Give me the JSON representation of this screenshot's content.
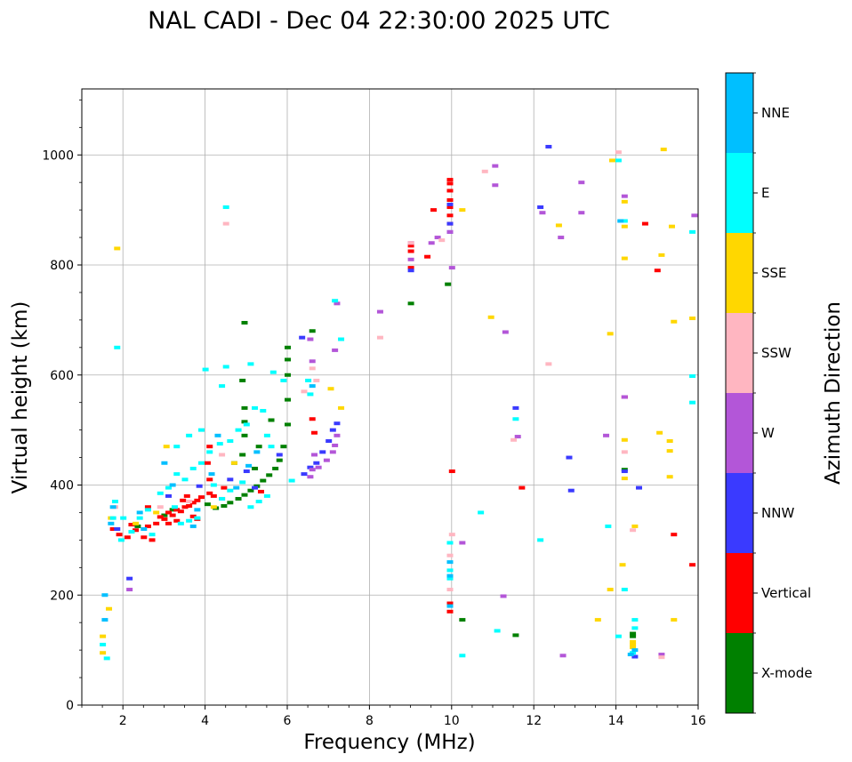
{
  "chart_data": {
    "type": "scatter",
    "title": "NAL CADI - Dec 04 22:30:00 2025 UTC",
    "xlabel": "Frequency (MHz)",
    "ylabel": "Virtual height (km)",
    "xlim": [
      1,
      16
    ],
    "ylim": [
      0,
      1120
    ],
    "xticks": [
      2,
      4,
      6,
      8,
      10,
      12,
      14,
      16
    ],
    "yticks": [
      0,
      200,
      400,
      600,
      800,
      1000
    ],
    "grid": true,
    "colorbar": {
      "label": "Azimuth Direction",
      "categories": [
        "X-mode",
        "Vertical",
        "NNW",
        "W",
        "SSW",
        "SSE",
        "E",
        "NNE"
      ],
      "colors": [
        "#008000",
        "#ff0000",
        "#3a3aff",
        "#b356d8",
        "#ffb6c1",
        "#ffd700",
        "#00ffff",
        "#00bfff"
      ]
    },
    "series": [
      {
        "name": "X-mode",
        "points": [
          [
            4.05,
            365
          ],
          [
            4.25,
            358
          ],
          [
            4.45,
            362
          ],
          [
            4.6,
            368
          ],
          [
            4.8,
            375
          ],
          [
            4.95,
            382
          ],
          [
            5.1,
            390
          ],
          [
            5.25,
            398
          ],
          [
            5.4,
            408
          ],
          [
            5.55,
            418
          ],
          [
            5.7,
            430
          ],
          [
            5.8,
            445
          ],
          [
            5.9,
            470
          ],
          [
            6.0,
            510
          ],
          [
            4.9,
            455
          ],
          [
            5.2,
            430
          ],
          [
            4.7,
            440
          ],
          [
            6.0,
            555
          ],
          [
            6.0,
            600
          ],
          [
            6.0,
            628
          ],
          [
            6.0,
            650
          ],
          [
            4.95,
            490
          ],
          [
            5.3,
            470
          ],
          [
            4.9,
            590
          ],
          [
            4.95,
            540
          ],
          [
            4.95,
            515
          ],
          [
            4.95,
            695
          ],
          [
            3.0,
            345
          ],
          [
            3.2,
            355
          ],
          [
            9.9,
            765
          ],
          [
            9.0,
            730
          ],
          [
            10.25,
            155
          ],
          [
            11.55,
            127
          ],
          [
            14.4,
            125
          ],
          [
            14.4,
            130
          ],
          [
            14.2,
            428
          ],
          [
            5.6,
            518
          ],
          [
            6.6,
            680
          ],
          [
            2.35,
            325
          ]
        ]
      },
      {
        "name": "Vertical",
        "points": [
          [
            1.75,
            320
          ],
          [
            1.9,
            310
          ],
          [
            2.1,
            305
          ],
          [
            2.3,
            318
          ],
          [
            2.5,
            305
          ],
          [
            2.6,
            325
          ],
          [
            2.8,
            330
          ],
          [
            2.9,
            342
          ],
          [
            3.0,
            338
          ],
          [
            3.1,
            350
          ],
          [
            3.2,
            345
          ],
          [
            3.3,
            355
          ],
          [
            3.4,
            352
          ],
          [
            3.5,
            360
          ],
          [
            3.6,
            362
          ],
          [
            3.7,
            368
          ],
          [
            3.8,
            372
          ],
          [
            3.9,
            378
          ],
          [
            4.1,
            385
          ],
          [
            4.2,
            380
          ],
          [
            4.4,
            375
          ],
          [
            3.3,
            335
          ],
          [
            3.1,
            330
          ],
          [
            2.6,
            360
          ],
          [
            3.55,
            380
          ],
          [
            4.1,
            410
          ],
          [
            4.05,
            440
          ],
          [
            4.1,
            470
          ],
          [
            9.0,
            835
          ],
          [
            9.0,
            825
          ],
          [
            9.0,
            795
          ],
          [
            9.4,
            815
          ],
          [
            9.55,
            900
          ],
          [
            9.95,
            955
          ],
          [
            9.95,
            948
          ],
          [
            9.95,
            935
          ],
          [
            9.95,
            918
          ],
          [
            9.95,
            905
          ],
          [
            9.95,
            890
          ],
          [
            9.95,
            875
          ],
          [
            10.0,
            425
          ],
          [
            9.95,
            185
          ],
          [
            9.95,
            170
          ],
          [
            11.7,
            395
          ],
          [
            14.2,
            560
          ],
          [
            14.7,
            875
          ],
          [
            15.0,
            790
          ],
          [
            15.4,
            310
          ],
          [
            15.85,
            255
          ],
          [
            6.65,
            495
          ],
          [
            6.6,
            520
          ],
          [
            2.2,
            328
          ],
          [
            2.7,
            300
          ],
          [
            3.7,
            343
          ],
          [
            3.8,
            338
          ],
          [
            3.45,
            372
          ],
          [
            4.45,
            395
          ],
          [
            5.35,
            388
          ]
        ]
      },
      {
        "name": "NNW",
        "points": [
          [
            1.85,
            320
          ],
          [
            2.15,
            230
          ],
          [
            6.4,
            420
          ],
          [
            6.55,
            432
          ],
          [
            6.7,
            440
          ],
          [
            6.85,
            460
          ],
          [
            7.0,
            480
          ],
          [
            7.1,
            500
          ],
          [
            7.2,
            512
          ],
          [
            9.0,
            790
          ],
          [
            6.35,
            668
          ],
          [
            9.95,
            860
          ],
          [
            9.95,
            875
          ],
          [
            9.95,
            910
          ],
          [
            12.15,
            905
          ],
          [
            12.35,
            1015
          ],
          [
            12.85,
            450
          ],
          [
            12.9,
            390
          ],
          [
            14.2,
            425
          ],
          [
            14.55,
            395
          ],
          [
            14.45,
            88
          ],
          [
            11.55,
            540
          ],
          [
            5.2,
            395
          ],
          [
            5.0,
            425
          ],
          [
            3.1,
            380
          ],
          [
            3.85,
            398
          ],
          [
            4.6,
            410
          ],
          [
            5.8,
            455
          ]
        ]
      },
      {
        "name": "W",
        "points": [
          [
            2.15,
            210
          ],
          [
            6.55,
            415
          ],
          [
            6.75,
            432
          ],
          [
            6.95,
            445
          ],
          [
            7.1,
            460
          ],
          [
            7.15,
            472
          ],
          [
            7.2,
            490
          ],
          [
            6.65,
            455
          ],
          [
            6.6,
            428
          ],
          [
            9.95,
            860
          ],
          [
            10.0,
            795
          ],
          [
            9.5,
            840
          ],
          [
            9.65,
            850
          ],
          [
            8.25,
            715
          ],
          [
            11.05,
            980
          ],
          [
            11.05,
            945
          ],
          [
            11.3,
            678
          ],
          [
            13.15,
            950
          ],
          [
            13.15,
            895
          ],
          [
            12.65,
            850
          ],
          [
            12.7,
            90
          ],
          [
            12.2,
            895
          ],
          [
            14.2,
            925
          ],
          [
            14.2,
            560
          ],
          [
            13.75,
            490
          ],
          [
            15.1,
            92
          ],
          [
            15.9,
            890
          ],
          [
            11.25,
            198
          ],
          [
            11.6,
            488
          ],
          [
            10.25,
            295
          ],
          [
            9.0,
            840
          ],
          [
            6.55,
            665
          ],
          [
            6.6,
            625
          ],
          [
            7.15,
            645
          ],
          [
            7.2,
            730
          ],
          [
            9.0,
            810
          ]
        ]
      },
      {
        "name": "SSW",
        "points": [
          [
            4.5,
            875
          ],
          [
            8.25,
            668
          ],
          [
            9.0,
            840
          ],
          [
            9.75,
            845
          ],
          [
            10.8,
            970
          ],
          [
            11.5,
            482
          ],
          [
            12.35,
            620
          ],
          [
            14.05,
            1005
          ],
          [
            14.2,
            460
          ],
          [
            14.4,
            318
          ],
          [
            15.1,
            87
          ],
          [
            9.95,
            272
          ],
          [
            9.95,
            210
          ],
          [
            6.4,
            570
          ],
          [
            6.6,
            612
          ],
          [
            6.7,
            590
          ],
          [
            10.0,
            310
          ],
          [
            2.9,
            360
          ],
          [
            3.6,
            370
          ],
          [
            4.4,
            455
          ],
          [
            1.8,
            360
          ]
        ]
      },
      {
        "name": "SSE",
        "points": [
          [
            1.5,
            125
          ],
          [
            1.5,
            95
          ],
          [
            1.65,
            175
          ],
          [
            1.85,
            830
          ],
          [
            4.7,
            440
          ],
          [
            7.05,
            575
          ],
          [
            10.25,
            900
          ],
          [
            10.95,
            705
          ],
          [
            12.6,
            872
          ],
          [
            13.55,
            155
          ],
          [
            13.85,
            210
          ],
          [
            13.85,
            675
          ],
          [
            13.9,
            990
          ],
          [
            14.2,
            915
          ],
          [
            14.2,
            870
          ],
          [
            14.2,
            812
          ],
          [
            14.2,
            482
          ],
          [
            14.2,
            412
          ],
          [
            14.15,
            255
          ],
          [
            14.45,
            325
          ],
          [
            14.4,
            105
          ],
          [
            14.4,
            115
          ],
          [
            14.4,
            110
          ],
          [
            15.15,
            1010
          ],
          [
            15.1,
            818
          ],
          [
            15.05,
            495
          ],
          [
            15.3,
            480
          ],
          [
            15.3,
            462
          ],
          [
            15.3,
            415
          ],
          [
            15.35,
            870
          ],
          [
            15.4,
            697
          ],
          [
            15.4,
            155
          ],
          [
            15.85,
            703
          ],
          [
            7.3,
            540
          ],
          [
            4.2,
            360
          ],
          [
            2.8,
            350
          ],
          [
            1.7,
            340
          ],
          [
            3.05,
            470
          ],
          [
            2.3,
            330
          ]
        ]
      },
      {
        "name": "E",
        "points": [
          [
            1.5,
            110
          ],
          [
            1.6,
            85
          ],
          [
            1.85,
            650
          ],
          [
            1.8,
            370
          ],
          [
            1.75,
            340
          ],
          [
            1.95,
            300
          ],
          [
            2.2,
            315
          ],
          [
            2.4,
            340
          ],
          [
            2.7,
            310
          ],
          [
            2.9,
            385
          ],
          [
            3.1,
            395
          ],
          [
            3.3,
            420
          ],
          [
            3.5,
            410
          ],
          [
            3.7,
            430
          ],
          [
            3.9,
            440
          ],
          [
            4.1,
            460
          ],
          [
            4.35,
            475
          ],
          [
            4.6,
            480
          ],
          [
            4.8,
            500
          ],
          [
            5.0,
            510
          ],
          [
            5.2,
            540
          ],
          [
            5.4,
            535
          ],
          [
            5.5,
            490
          ],
          [
            5.6,
            470
          ],
          [
            4.4,
            375
          ],
          [
            4.6,
            390
          ],
          [
            4.9,
            405
          ],
          [
            5.1,
            360
          ],
          [
            5.3,
            370
          ],
          [
            5.5,
            380
          ],
          [
            3.4,
            330
          ],
          [
            3.6,
            335
          ],
          [
            3.8,
            340
          ],
          [
            4.2,
            400
          ],
          [
            3.25,
            360
          ],
          [
            4.5,
            905
          ],
          [
            4.5,
            615
          ],
          [
            4.4,
            580
          ],
          [
            5.65,
            605
          ],
          [
            6.5,
            590
          ],
          [
            6.55,
            565
          ],
          [
            7.3,
            665
          ],
          [
            7.15,
            735
          ],
          [
            9.95,
            295
          ],
          [
            9.95,
            245
          ],
          [
            9.95,
            230
          ],
          [
            10.25,
            90
          ],
          [
            10.7,
            350
          ],
          [
            11.55,
            520
          ],
          [
            12.15,
            300
          ],
          [
            14.05,
            990
          ],
          [
            14.2,
            880
          ],
          [
            14.2,
            210
          ],
          [
            14.05,
            125
          ],
          [
            13.8,
            325
          ],
          [
            14.45,
            155
          ],
          [
            14.45,
            140
          ],
          [
            14.4,
            95
          ],
          [
            15.85,
            860
          ],
          [
            15.85,
            598
          ],
          [
            15.85,
            550
          ],
          [
            11.1,
            135
          ],
          [
            6.1,
            408
          ],
          [
            3.3,
            470
          ],
          [
            3.6,
            490
          ],
          [
            3.9,
            500
          ],
          [
            2.6,
            355
          ],
          [
            2.0,
            340
          ],
          [
            5.9,
            590
          ],
          [
            5.1,
            620
          ],
          [
            4.0,
            610
          ]
        ]
      },
      {
        "name": "NNE",
        "points": [
          [
            1.55,
            155
          ],
          [
            1.55,
            200
          ],
          [
            1.75,
            360
          ],
          [
            2.5,
            320
          ],
          [
            3.0,
            440
          ],
          [
            3.2,
            400
          ],
          [
            3.8,
            355
          ],
          [
            3.7,
            325
          ],
          [
            4.3,
            490
          ],
          [
            5.05,
            435
          ],
          [
            5.25,
            460
          ],
          [
            4.75,
            395
          ],
          [
            6.6,
            580
          ],
          [
            9.95,
            260
          ],
          [
            9.95,
            235
          ],
          [
            9.95,
            180
          ],
          [
            14.1,
            880
          ],
          [
            14.45,
            100
          ],
          [
            14.35,
            92
          ],
          [
            4.15,
            420
          ],
          [
            2.4,
            350
          ],
          [
            1.7,
            330
          ]
        ]
      }
    ]
  }
}
